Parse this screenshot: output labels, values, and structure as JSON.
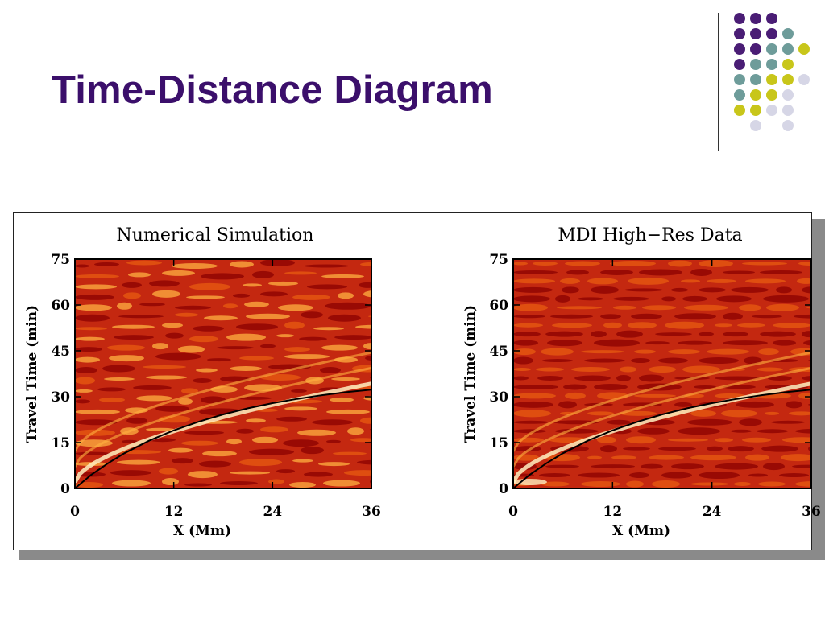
{
  "slide": {
    "title": "Time-Distance Diagram"
  },
  "decor": {
    "dot_colors": {
      "purple": "#4a1d75",
      "teal": "#6e9c9a",
      "lime": "#c8c61a",
      "lavender": "#d6d6e6"
    },
    "dot_grid": [
      [
        "purple",
        "purple",
        "purple",
        null,
        null
      ],
      [
        "purple",
        "purple",
        "purple",
        "teal",
        null
      ],
      [
        "purple",
        "purple",
        "teal",
        "teal",
        "lime"
      ],
      [
        "purple",
        "teal",
        "teal",
        "lime",
        null
      ],
      [
        "teal",
        "teal",
        "lime",
        "lime",
        "lavender"
      ],
      [
        "teal",
        "lime",
        "lime",
        "lavender",
        null
      ],
      [
        "lime",
        "lime",
        "lavender",
        "lavender",
        null
      ],
      [
        null,
        "lavender",
        null,
        "lavender",
        null
      ]
    ]
  },
  "chart_data": [
    {
      "type": "heatmap",
      "title": "Numerical Simulation",
      "xlabel": "X (Mm)",
      "ylabel": "Travel Time (min)",
      "xlim": [
        0,
        36
      ],
      "ylim": [
        0,
        75
      ],
      "xticks": [
        "0",
        "12",
        "24",
        "36"
      ],
      "yticks": [
        "0",
        "15",
        "30",
        "45",
        "60",
        "75"
      ],
      "colormap": [
        "#8a0000",
        "#c42810",
        "#e85a10",
        "#ffb040",
        "#fff0c0"
      ],
      "overlay_curve": {
        "x": [
          0,
          2,
          4,
          6,
          9,
          12,
          15,
          18,
          21,
          24,
          27,
          30,
          33,
          36
        ],
        "y": [
          0,
          4.5,
          8.2,
          11.5,
          15.6,
          19.0,
          21.8,
          24.2,
          26.2,
          27.9,
          29.3,
          30.5,
          31.5,
          32.3
        ]
      }
    },
    {
      "type": "heatmap",
      "title": "MDI High−Res Data",
      "xlabel": "X (Mm)",
      "ylabel": "Travel Time (min)",
      "xlim": [
        0,
        36
      ],
      "ylim": [
        0,
        75
      ],
      "xticks": [
        "0",
        "12",
        "24",
        "36"
      ],
      "yticks": [
        "0",
        "15",
        "30",
        "45",
        "60",
        "75"
      ],
      "colormap": [
        "#8a0000",
        "#c42810",
        "#e85a10",
        "#ffb040",
        "#fff0c0"
      ],
      "overlay_curve": {
        "x": [
          0,
          2,
          4,
          6,
          9,
          12,
          15,
          18,
          21,
          24,
          27,
          30,
          33,
          36
        ],
        "y": [
          0,
          4.5,
          8.2,
          11.5,
          15.6,
          19.0,
          21.8,
          24.2,
          26.2,
          27.9,
          29.3,
          30.5,
          31.5,
          32.3
        ]
      }
    }
  ]
}
